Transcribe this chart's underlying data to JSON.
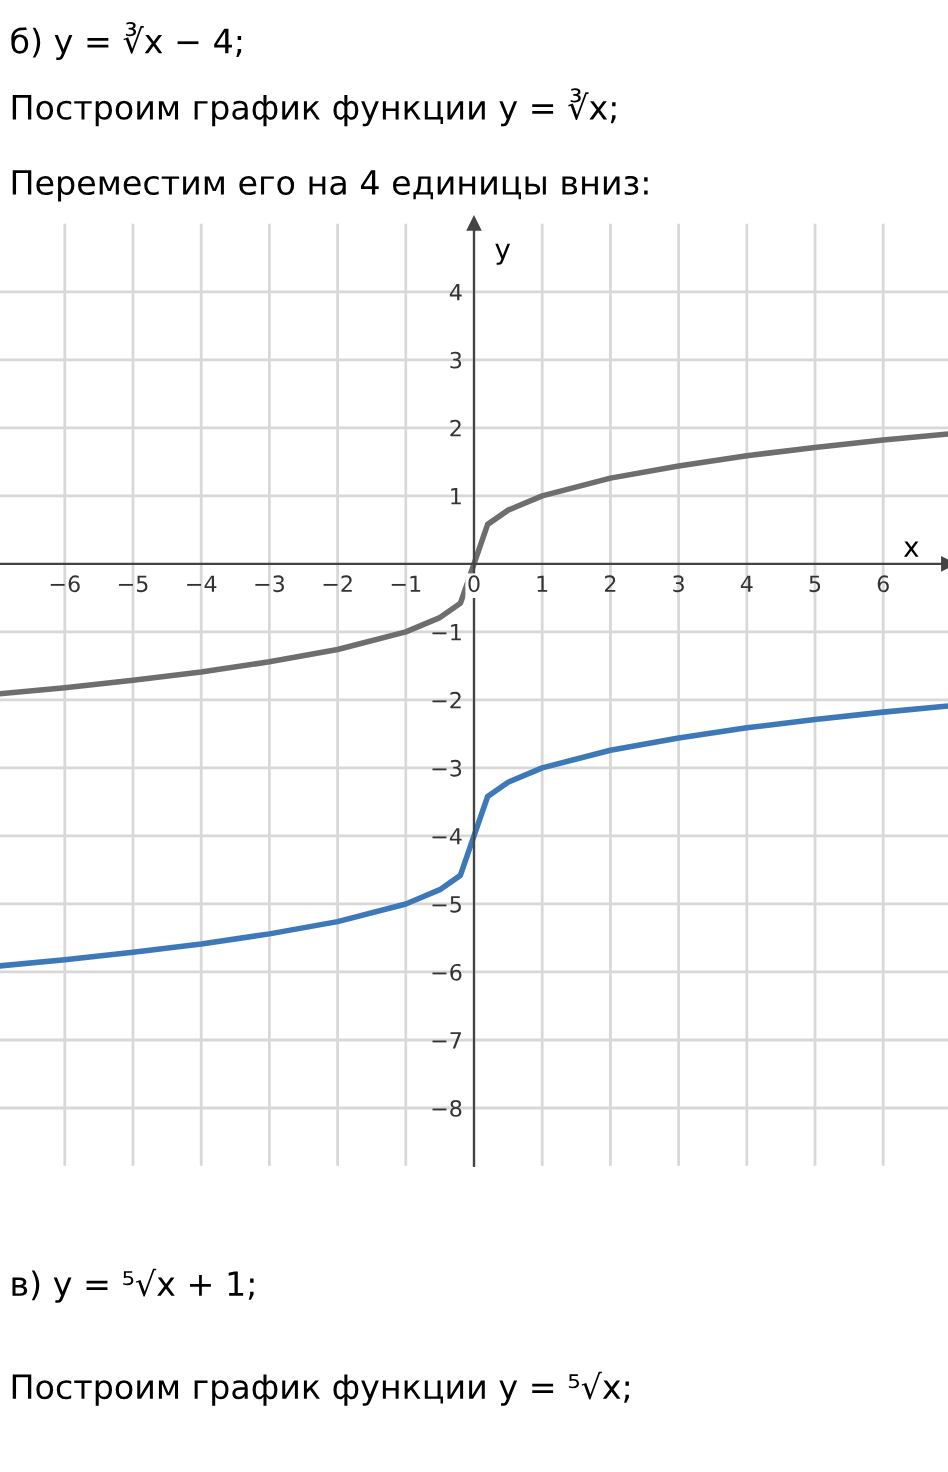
{
  "chart_data": {
    "type": "line",
    "title": "б) y = ∛x − 4;",
    "annotations": [
      "Построим график функции y = ∛x;",
      "Переместим его на 4 единицы вниз:",
      "в) y = ⁵√x + 1;",
      "Построим график функции y = ⁵√x;"
    ],
    "xlabel": "x",
    "ylabel": "y",
    "x": [
      -6.95,
      -6,
      -5,
      -4,
      -3,
      -2,
      -1,
      -0.5,
      -0.2,
      0,
      0.2,
      0.5,
      1,
      2,
      3,
      4,
      5,
      6,
      6.95
    ],
    "series": [
      {
        "color": "#6e6e6e",
        "values": [
          -1.91,
          -1.82,
          -1.71,
          -1.59,
          -1.44,
          -1.26,
          -1,
          -0.79,
          -0.58,
          0,
          0.58,
          0.79,
          1,
          1.26,
          1.44,
          1.59,
          1.71,
          1.82,
          1.91
        ]
      },
      {
        "color": "#3d78b8",
        "values": [
          -5.91,
          -5.82,
          -5.71,
          -5.59,
          -5.44,
          -5.26,
          -5,
          -4.79,
          -4.58,
          -4,
          -3.42,
          -3.21,
          -3,
          -2.74,
          -2.56,
          -2.41,
          -2.29,
          -2.18,
          -2.09
        ]
      }
    ],
    "xlim": [
      -6.95,
      6.95
    ],
    "ylim": [
      -8.85,
      5.0
    ],
    "xticks": [
      {
        "value": -6,
        "label": "−6"
      },
      {
        "value": -5,
        "label": "−5"
      },
      {
        "value": -4,
        "label": "−4"
      },
      {
        "value": -3,
        "label": "−3"
      },
      {
        "value": -2,
        "label": "−2"
      },
      {
        "value": -1,
        "label": "−1"
      },
      0,
      1,
      2,
      3,
      4,
      5,
      6
    ],
    "yticks": [
      {
        "value": -8,
        "label": "−8"
      },
      {
        "value": -7,
        "label": "−7"
      },
      {
        "value": -6,
        "label": "−6"
      },
      {
        "value": -5,
        "label": "−5"
      },
      {
        "value": -4,
        "label": "−4"
      },
      {
        "value": -3,
        "label": "−3"
      },
      {
        "value": -2,
        "label": "−2"
      },
      {
        "value": -1,
        "label": "−1"
      },
      1,
      2,
      3,
      4
    ],
    "grid": true,
    "marker": "none",
    "line_style": "solid"
  }
}
